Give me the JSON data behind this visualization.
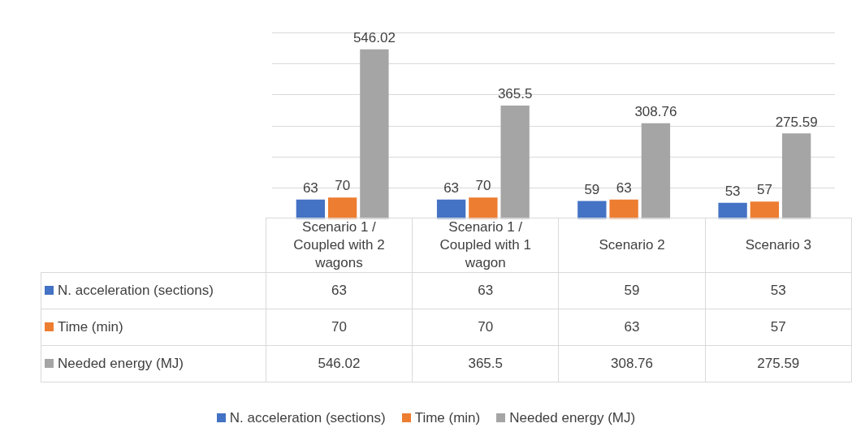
{
  "chart_data": {
    "type": "bar",
    "categories": [
      "Scenario 1 / Coupled with 2 wagons",
      "Scenario 1 / Coupled with 1 wagon",
      "Scenario 2",
      "Scenario 3"
    ],
    "series": [
      {
        "name": "N. acceleration (sections)",
        "color": "#4472c4",
        "values": [
          63,
          63,
          59,
          53
        ]
      },
      {
        "name": "Time (min)",
        "color": "#ed7d31",
        "values": [
          70,
          70,
          63,
          57
        ]
      },
      {
        "name": "Needed energy (MJ)",
        "color": "#a5a5a5",
        "values": [
          546.02,
          365.5,
          308.76,
          275.59
        ]
      }
    ],
    "ylim": [
      0,
      600
    ],
    "annotations": [
      {
        "text": "63",
        "x": "Scenario 1 / Coupled with 2 wagons",
        "y": 63
      },
      {
        "text": "70",
        "x": "Scenario 1 / Coupled with 2 wagons",
        "y": 70
      },
      "546.02",
      {
        "text": "63",
        "x": "Scenario 1 / Coupled with 1 wagon",
        "y": 63
      },
      {
        "text": "70",
        "x": "Scenario 1 / Coupled with 1 wagon",
        "y": 70
      },
      "365.5",
      {
        "text": "59",
        "x": "Scenario 2",
        "y": 59
      },
      {
        "text": "63",
        "x": "Scenario 2",
        "y": 63
      },
      "308.76",
      {
        "text": "53",
        "x": "Scenario 3",
        "y": 53
      },
      {
        "text": "57",
        "x": "Scenario 3",
        "y": 57
      },
      "275.59"
    ],
    "grid": "y",
    "tick_labels": "x",
    "data_labels": true,
    "legend": "bottom"
  }
}
